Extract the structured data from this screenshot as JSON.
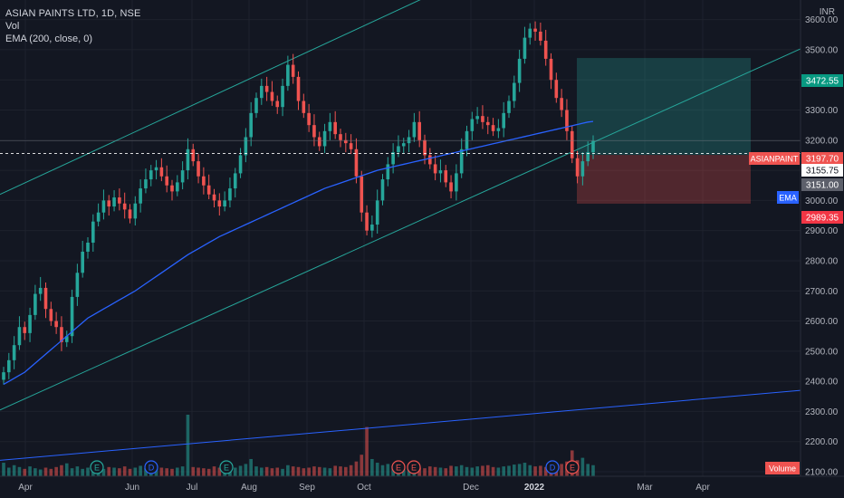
{
  "legend": {
    "title": "ASIAN PAINTS LTD, 1D, NSE",
    "vol": "Vol",
    "ema": "EMA (200, close, 0)"
  },
  "currency": "INR",
  "colors": {
    "background": "#131722",
    "grid": "#1e222d",
    "up": "#26a69a",
    "down": "#ef5350",
    "ema": "#2962ff",
    "channel": "#26a69a",
    "axis_text": "#b2b5be"
  },
  "chart_data": {
    "type": "candlestick",
    "y_axis": {
      "range": [
        2085,
        3665
      ],
      "ticks": [
        2100,
        2200,
        2300,
        2400,
        2500,
        2600,
        2700,
        2800,
        2900,
        3000,
        3100,
        3200,
        3300,
        3400,
        3500,
        3600
      ],
      "tick_labels": [
        "2100.00",
        "2200.00",
        "2300.00",
        "2400.00",
        "2500.00",
        "2600.00",
        "2700.00",
        "2800.00",
        "2900.00",
        "3000.00",
        "3100.00",
        "3200.00",
        "3300.00",
        "3400.00",
        "3500.00",
        "3600.00"
      ]
    },
    "x_axis": {
      "labels": [
        "Apr",
        "Jun",
        "Jul",
        "Aug",
        "Sep",
        "Oct",
        "Dec",
        "2022",
        "Mar",
        "Apr"
      ],
      "bold": [
        false,
        false,
        false,
        false,
        false,
        false,
        false,
        true,
        false,
        false
      ]
    },
    "series": [
      {
        "name": "ASIANPAINT",
        "label_value": "3197.70",
        "close": [
          2430,
          2470,
          2520,
          2580,
          2560,
          2620,
          2690,
          2710,
          2640,
          2600,
          2580,
          2530,
          2550,
          2680,
          2760,
          2830,
          2860,
          2930,
          2960,
          3000,
          2980,
          3010,
          2990,
          2970,
          2940,
          2990,
          3040,
          3070,
          3100,
          3110,
          3080,
          3050,
          3030,
          3060,
          3100,
          3170,
          3130,
          3080,
          3050,
          3020,
          3000,
          2980,
          3000,
          3040,
          3090,
          3150,
          3210,
          3290,
          3340,
          3380,
          3360,
          3330,
          3310,
          3380,
          3450,
          3410,
          3330,
          3290,
          3250,
          3210,
          3180,
          3230,
          3260,
          3220,
          3200,
          3190,
          3170,
          3080,
          2960,
          2900,
          2920,
          3000,
          3070,
          3120,
          3160,
          3180,
          3190,
          3210,
          3260,
          3200,
          3150,
          3120,
          3090,
          3100,
          3060,
          3030,
          3090,
          3170,
          3230,
          3270,
          3280,
          3260,
          3250,
          3230,
          3240,
          3290,
          3330,
          3390,
          3470,
          3540,
          3570,
          3560,
          3530,
          3470,
          3400,
          3340,
          3300,
          3230,
          3140,
          3080,
          3130,
          3160,
          3198
        ],
        "volume_max_scale": 1.0,
        "volume": [
          0.22,
          0.14,
          0.18,
          0.15,
          0.12,
          0.16,
          0.13,
          0.11,
          0.14,
          0.12,
          0.15,
          0.18,
          0.21,
          0.13,
          0.16,
          0.12,
          0.14,
          0.11,
          0.13,
          0.12,
          0.15,
          0.14,
          0.13,
          0.16,
          0.12,
          0.14,
          0.17,
          0.13,
          0.12,
          0.15,
          0.14,
          0.13,
          0.12,
          0.14,
          0.16,
          1.0,
          0.15,
          0.14,
          0.13,
          0.12,
          0.16,
          0.14,
          0.13,
          0.15,
          0.14,
          0.17,
          0.2,
          0.28,
          0.16,
          0.14,
          0.15,
          0.13,
          0.14,
          0.12,
          0.18,
          0.16,
          0.15,
          0.13,
          0.14,
          0.16,
          0.15,
          0.14,
          0.13,
          0.17,
          0.16,
          0.15,
          0.18,
          0.24,
          0.35,
          0.8,
          0.28,
          0.22,
          0.18,
          0.2,
          0.17,
          0.15,
          0.14,
          0.16,
          0.15,
          0.14,
          0.13,
          0.16,
          0.15,
          0.14,
          0.13,
          0.17,
          0.16,
          0.18,
          0.15,
          0.14,
          0.16,
          0.17,
          0.18,
          0.15,
          0.14,
          0.16,
          0.17,
          0.19,
          0.2,
          0.22,
          0.18,
          0.16,
          0.17,
          0.15,
          0.16,
          0.18,
          0.2,
          0.24,
          0.42,
          0.26,
          0.3,
          0.2,
          0.18
        ]
      },
      {
        "name": "EMA",
        "values": [
          2390,
          2400,
          2410,
          2420,
          2430,
          2445,
          2460,
          2475,
          2490,
          2505,
          2520,
          2535,
          2550,
          2565,
          2580,
          2595,
          2610,
          2620,
          2630,
          2640,
          2650,
          2660,
          2670,
          2680,
          2690,
          2700,
          2712,
          2724,
          2736,
          2748,
          2760,
          2772,
          2784,
          2796,
          2808,
          2820,
          2830,
          2840,
          2850,
          2860,
          2870,
          2880,
          2888,
          2896,
          2904,
          2912,
          2920,
          2928,
          2936,
          2944,
          2952,
          2960,
          2968,
          2976,
          2984,
          2992,
          3000,
          3008,
          3016,
          3024,
          3032,
          3040,
          3046,
          3052,
          3058,
          3064,
          3070,
          3076,
          3082,
          3088,
          3094,
          3100,
          3104,
          3108,
          3112,
          3116,
          3120,
          3124,
          3128,
          3132,
          3136,
          3140,
          3144,
          3148,
          3152,
          3156,
          3160,
          3164,
          3168,
          3172,
          3176,
          3180,
          3184,
          3188,
          3192,
          3196,
          3200,
          3204,
          3208,
          3212,
          3216,
          3220,
          3224,
          3228,
          3232,
          3236,
          3240,
          3244,
          3248,
          3252,
          3256,
          3260,
          3262
        ]
      }
    ],
    "price_labels": [
      {
        "name": "target",
        "value": "3472.55",
        "color": "#089981"
      },
      {
        "name": "ASIANPAINT",
        "value": "3197.70",
        "color": "#ef5350"
      },
      {
        "name": "current",
        "value": "3155.75",
        "color": "#ffffff"
      },
      {
        "name": "entry",
        "value": "3151.00",
        "color": "#5d606b"
      },
      {
        "name": "EMA",
        "value": "",
        "color": "#2962ff"
      },
      {
        "name": "stop",
        "value": "2989.35",
        "color": "#f23645"
      }
    ],
    "ema_tag": "EMA",
    "volume_tag": "Volume",
    "event_markers": [
      "E",
      "D",
      "E",
      "E",
      "E",
      "D",
      "E"
    ],
    "position": {
      "entry": 3151,
      "target": 3472.55,
      "stop": 2989.35,
      "current": 3155.75
    },
    "grid": true
  }
}
